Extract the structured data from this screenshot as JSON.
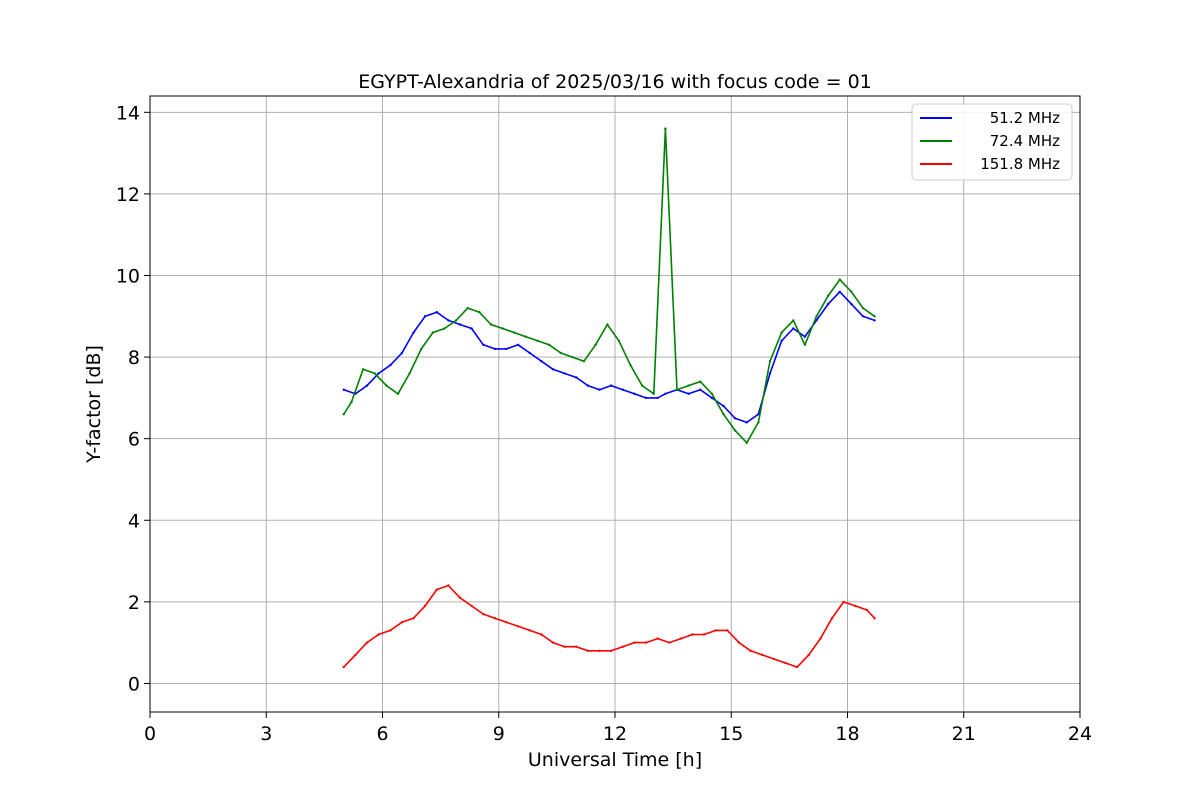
{
  "chart_data": {
    "type": "line",
    "title": "EGYPT-Alexandria of 2025/03/16 with focus code = 01",
    "xlabel": "Universal Time [h]",
    "ylabel": "Y-factor [dB]",
    "xlim": [
      0,
      24
    ],
    "ylim": [
      -0.7,
      14.4
    ],
    "xticks": [
      0,
      3,
      6,
      9,
      12,
      15,
      18,
      21,
      24
    ],
    "yticks": [
      0,
      2,
      4,
      6,
      8,
      10,
      12,
      14
    ],
    "grid": true,
    "legend_position": "top-right",
    "series": [
      {
        "name": "51.2 MHz",
        "color": "#0000ff",
        "x": [
          5.0,
          5.3,
          5.6,
          5.9,
          6.2,
          6.5,
          6.8,
          7.1,
          7.4,
          7.7,
          8.0,
          8.3,
          8.6,
          8.9,
          9.2,
          9.5,
          9.8,
          10.1,
          10.4,
          10.7,
          11.0,
          11.3,
          11.6,
          11.9,
          12.2,
          12.5,
          12.8,
          13.1,
          13.3,
          13.6,
          13.9,
          14.2,
          14.5,
          14.8,
          15.1,
          15.4,
          15.7,
          16.0,
          16.3,
          16.6,
          16.9,
          17.2,
          17.5,
          17.8,
          18.1,
          18.4,
          18.7
        ],
        "y": [
          7.2,
          7.1,
          7.3,
          7.6,
          7.8,
          8.1,
          8.6,
          9.0,
          9.1,
          8.9,
          8.8,
          8.7,
          8.3,
          8.2,
          8.2,
          8.3,
          8.1,
          7.9,
          7.7,
          7.6,
          7.5,
          7.3,
          7.2,
          7.3,
          7.2,
          7.1,
          7.0,
          7.0,
          7.1,
          7.2,
          7.1,
          7.2,
          7.0,
          6.8,
          6.5,
          6.4,
          6.6,
          7.6,
          8.4,
          8.7,
          8.5,
          8.9,
          9.3,
          9.6,
          9.3,
          9.0,
          8.9
        ]
      },
      {
        "name": "72.4 MHz",
        "color": "#008000",
        "x": [
          5.0,
          5.2,
          5.5,
          5.8,
          6.1,
          6.4,
          6.7,
          7.0,
          7.3,
          7.6,
          7.9,
          8.2,
          8.5,
          8.8,
          9.1,
          9.4,
          9.7,
          10.0,
          10.3,
          10.6,
          10.9,
          11.2,
          11.5,
          11.8,
          12.1,
          12.4,
          12.7,
          13.0,
          13.3,
          13.6,
          13.9,
          14.2,
          14.5,
          14.8,
          15.1,
          15.4,
          15.7,
          16.0,
          16.3,
          16.6,
          16.9,
          17.2,
          17.5,
          17.8,
          18.1,
          18.4,
          18.7
        ],
        "y": [
          6.6,
          6.9,
          7.7,
          7.6,
          7.3,
          7.1,
          7.6,
          8.2,
          8.6,
          8.7,
          8.9,
          9.2,
          9.1,
          8.8,
          8.7,
          8.6,
          8.5,
          8.4,
          8.3,
          8.1,
          8.0,
          7.9,
          8.3,
          8.8,
          8.4,
          7.8,
          7.3,
          7.1,
          13.6,
          7.2,
          7.3,
          7.4,
          7.1,
          6.6,
          6.2,
          5.9,
          6.4,
          7.9,
          8.6,
          8.9,
          8.3,
          9.0,
          9.5,
          9.9,
          9.6,
          9.2,
          9.0
        ]
      },
      {
        "name": "151.8 MHz",
        "color": "#ff0000",
        "x": [
          5.0,
          5.3,
          5.6,
          5.9,
          6.2,
          6.5,
          6.8,
          7.1,
          7.4,
          7.7,
          8.0,
          8.3,
          8.6,
          8.9,
          9.2,
          9.5,
          9.8,
          10.1,
          10.4,
          10.7,
          11.0,
          11.3,
          11.6,
          11.9,
          12.2,
          12.5,
          12.8,
          13.1,
          13.4,
          13.7,
          14.0,
          14.3,
          14.6,
          14.9,
          15.2,
          15.5,
          15.8,
          16.1,
          16.4,
          16.7,
          17.0,
          17.3,
          17.6,
          17.9,
          18.2,
          18.5,
          18.7
        ],
        "y": [
          0.4,
          0.7,
          1.0,
          1.2,
          1.3,
          1.5,
          1.6,
          1.9,
          2.3,
          2.4,
          2.1,
          1.9,
          1.7,
          1.6,
          1.5,
          1.4,
          1.3,
          1.2,
          1.0,
          0.9,
          0.9,
          0.8,
          0.8,
          0.8,
          0.9,
          1.0,
          1.0,
          1.1,
          1.0,
          1.1,
          1.2,
          1.2,
          1.3,
          1.3,
          1.0,
          0.8,
          0.7,
          0.6,
          0.5,
          0.4,
          0.7,
          1.1,
          1.6,
          2.0,
          1.9,
          1.8,
          1.6
        ]
      }
    ]
  }
}
